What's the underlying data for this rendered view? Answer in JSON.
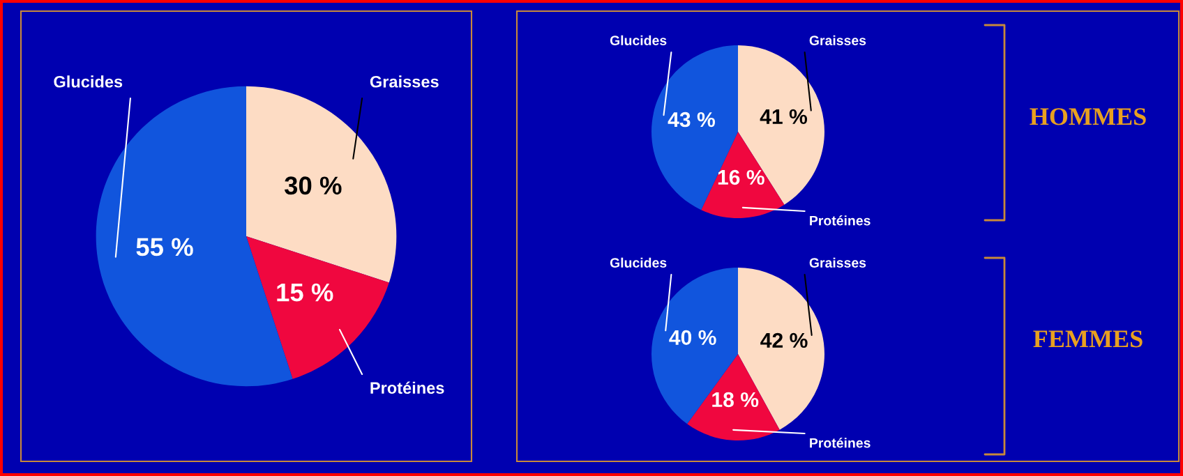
{
  "chart_data": [
    {
      "type": "pie",
      "categories": [
        "Graisses",
        "Protéines",
        "Glucides"
      ],
      "values": [
        30,
        15,
        55
      ],
      "colors": [
        "#fddcc4",
        "#f0073f",
        "#1155dd"
      ],
      "value_labels": [
        "30 %",
        "15 %",
        "55 %"
      ]
    },
    {
      "type": "pie",
      "title": "HOMMES",
      "categories": [
        "Graisses",
        "Protéines",
        "Glucides"
      ],
      "values": [
        41,
        16,
        43
      ],
      "colors": [
        "#fddcc4",
        "#f0073f",
        "#1155dd"
      ],
      "value_labels": [
        "41 %",
        "16 %",
        "43 %"
      ]
    },
    {
      "type": "pie",
      "title": "FEMMES",
      "categories": [
        "Graisses",
        "Protéines",
        "Glucides"
      ],
      "values": [
        42,
        18,
        40
      ],
      "colors": [
        "#fddcc4",
        "#f0073f",
        "#1155dd"
      ],
      "value_labels": [
        "42 %",
        "18 %",
        "40 %"
      ]
    }
  ]
}
